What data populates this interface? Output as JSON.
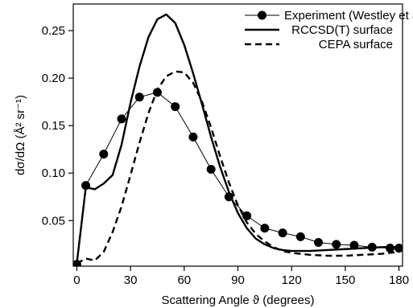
{
  "chart_data": {
    "type": "line",
    "title": "",
    "xlabel": "Scattering Angle ϑ (degrees)",
    "ylabel": "dσ/dΩ (Å² sr⁻¹)",
    "xlim": [
      -2,
      182
    ],
    "ylim": [
      0.002,
      0.278
    ],
    "x_ticks": [
      0,
      30,
      60,
      90,
      120,
      150,
      180
    ],
    "x_tick_labels": [
      "0",
      "30",
      "60",
      "90",
      "120",
      "150",
      "180"
    ],
    "y_ticks": [
      0.05,
      0.1,
      0.15,
      0.2,
      0.25
    ],
    "y_tick_labels": [
      "0.05",
      "0.10",
      "0.15",
      "0.20",
      "0.25"
    ],
    "grid": false,
    "legend_position": "top-right",
    "series": [
      {
        "name": "Experiment (Westley et al.)",
        "style": "line-marker",
        "color": "#000000",
        "x": [
          0,
          5,
          15,
          25,
          35,
          45,
          55,
          65,
          75,
          85,
          95,
          105,
          115,
          125,
          135,
          145,
          155,
          165,
          175,
          180
        ],
        "y": [
          0.004,
          0.087,
          0.12,
          0.157,
          0.18,
          0.185,
          0.17,
          0.138,
          0.104,
          0.075,
          0.055,
          0.042,
          0.037,
          0.033,
          0.027,
          0.025,
          0.024,
          0.022,
          0.021,
          0.021
        ]
      },
      {
        "name": "RCCSD(T) surface",
        "style": "solid",
        "color": "#000000",
        "x": [
          0,
          5,
          10,
          15,
          20,
          25,
          30,
          35,
          40,
          45,
          50,
          55,
          60,
          65,
          70,
          75,
          80,
          85,
          90,
          95,
          100,
          105,
          110,
          115,
          120,
          125,
          130,
          140,
          150,
          160,
          170,
          180
        ],
        "y": [
          0.005,
          0.085,
          0.083,
          0.089,
          0.098,
          0.13,
          0.174,
          0.212,
          0.243,
          0.262,
          0.267,
          0.258,
          0.235,
          0.205,
          0.172,
          0.138,
          0.107,
          0.08,
          0.058,
          0.042,
          0.031,
          0.025,
          0.021,
          0.019,
          0.018,
          0.018,
          0.018,
          0.019,
          0.02,
          0.021,
          0.022,
          0.022
        ]
      },
      {
        "name": "CEPA surface",
        "style": "dashed",
        "color": "#000000",
        "x": [
          0,
          5,
          10,
          15,
          20,
          25,
          30,
          35,
          40,
          45,
          50,
          55,
          60,
          65,
          70,
          75,
          80,
          85,
          90,
          95,
          100,
          105,
          110,
          115,
          120,
          125,
          130,
          140,
          150,
          160,
          170,
          180
        ],
        "y": [
          0.005,
          0.01,
          0.008,
          0.017,
          0.038,
          0.065,
          0.098,
          0.132,
          0.163,
          0.188,
          0.202,
          0.207,
          0.206,
          0.195,
          0.175,
          0.148,
          0.118,
          0.09,
          0.066,
          0.048,
          0.036,
          0.028,
          0.022,
          0.018,
          0.016,
          0.015,
          0.014,
          0.013,
          0.013,
          0.014,
          0.015,
          0.017
        ]
      }
    ]
  }
}
